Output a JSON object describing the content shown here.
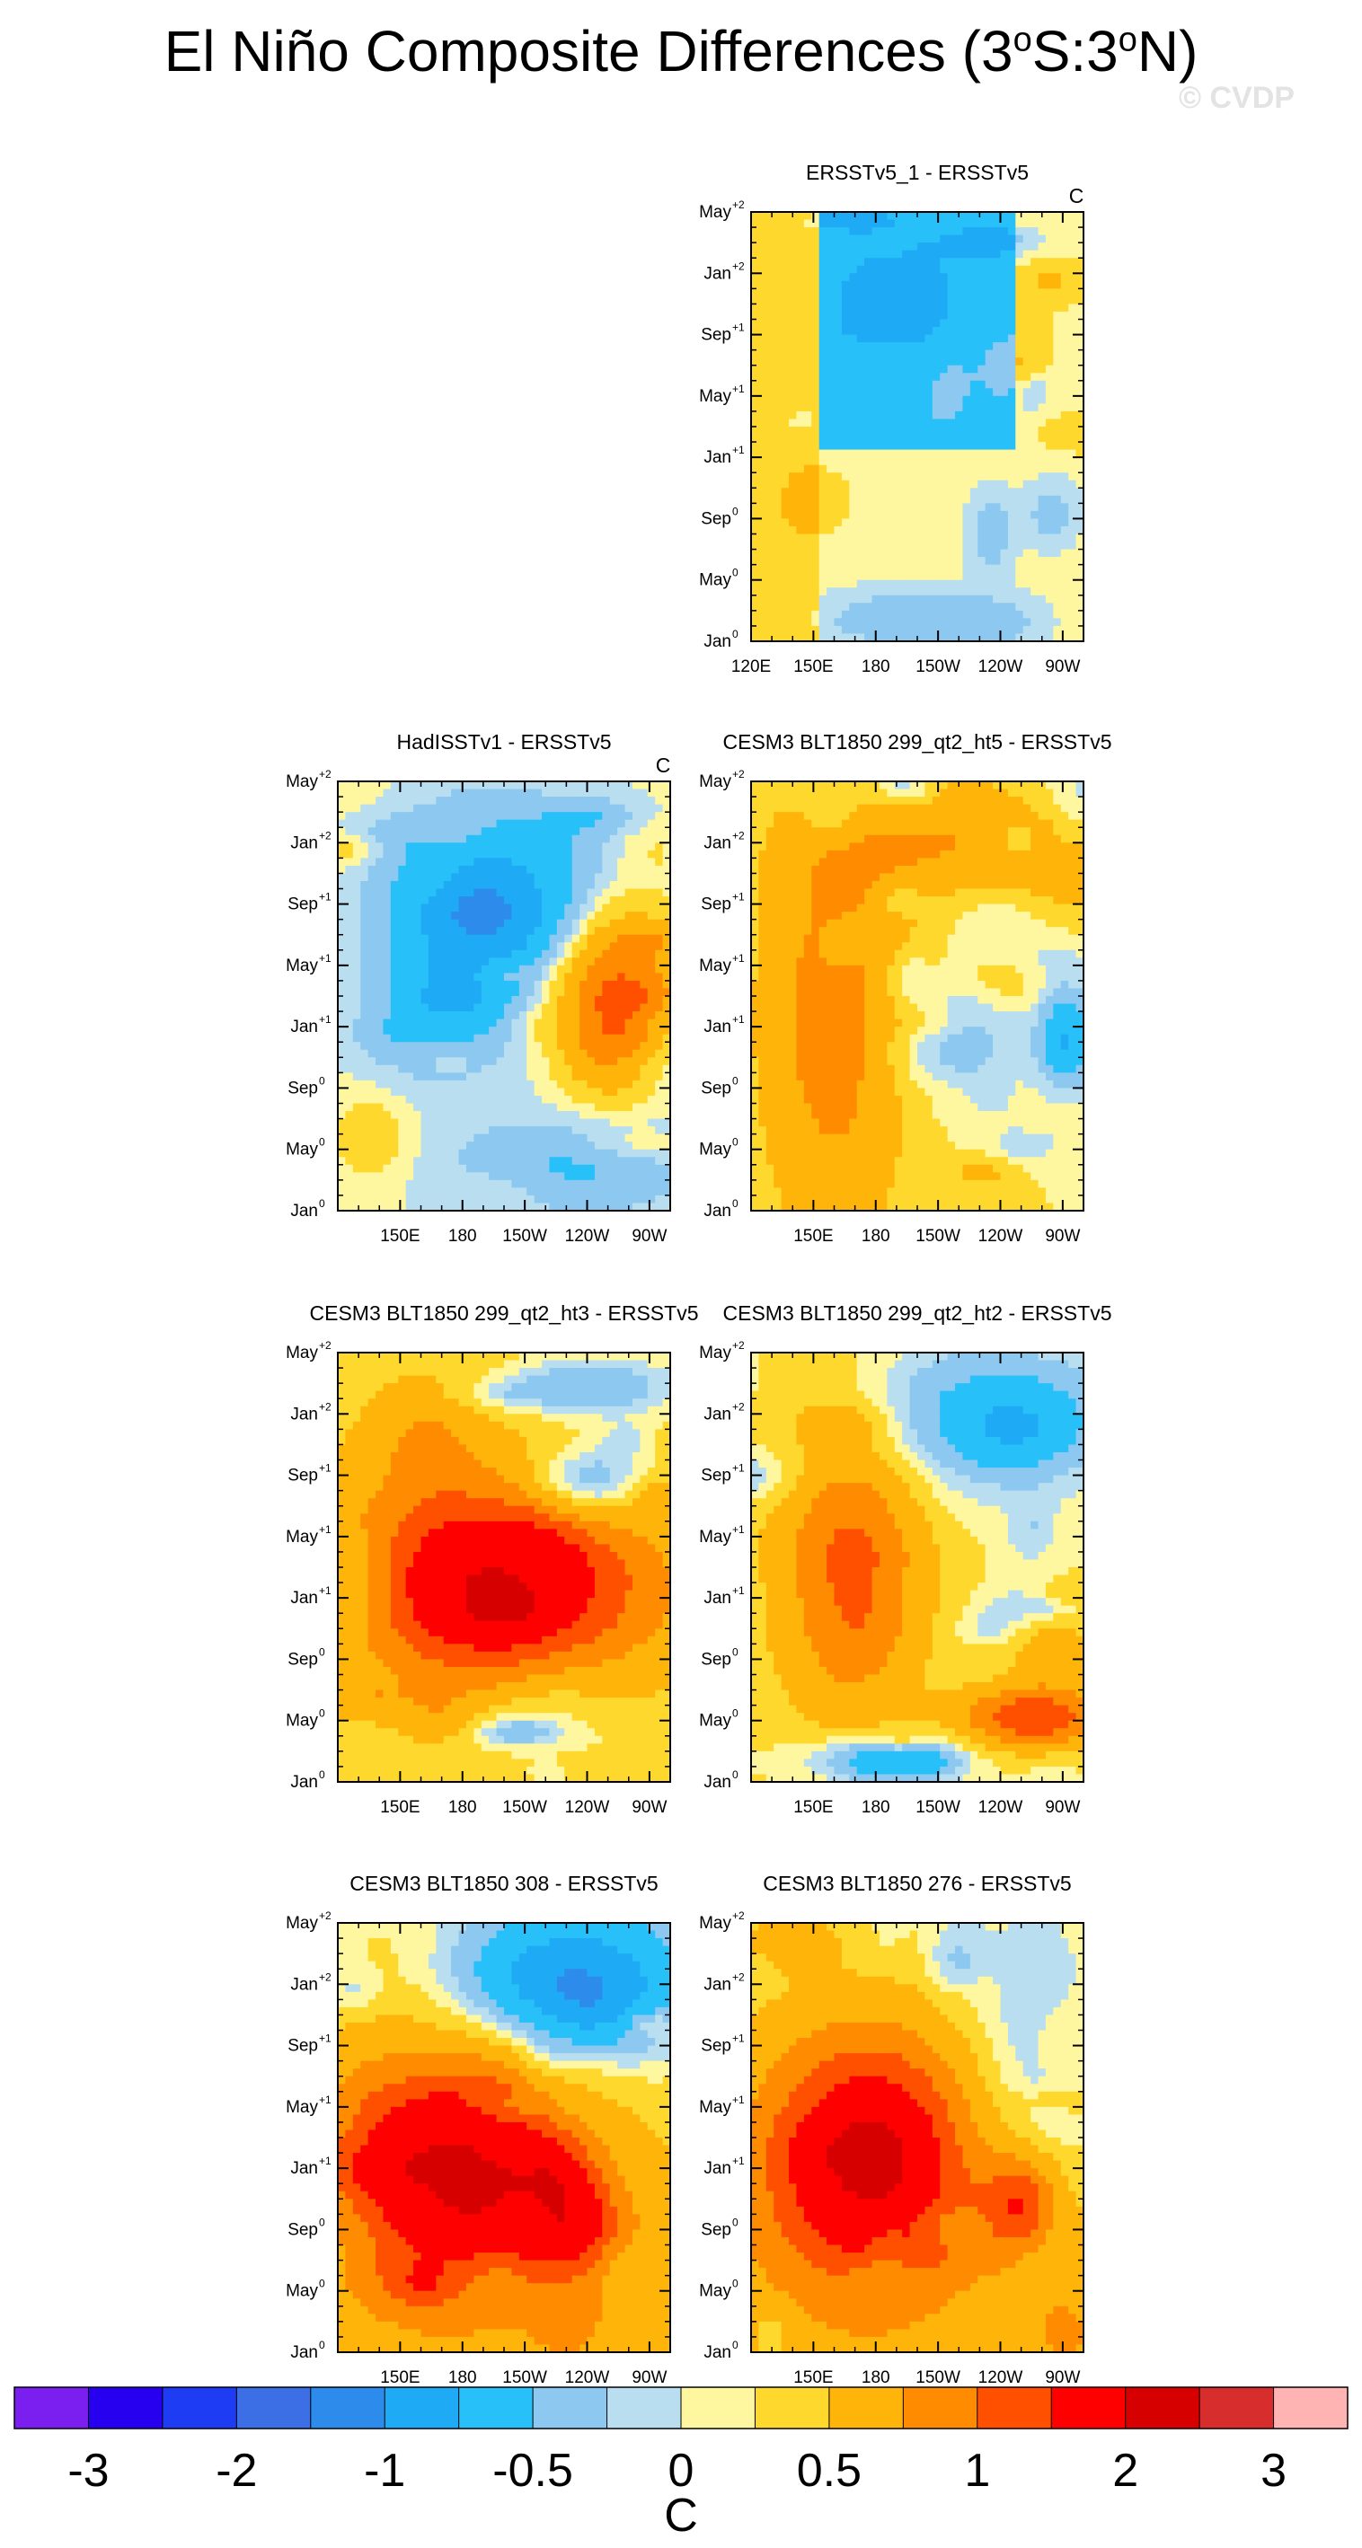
{
  "title": {
    "prefix": "El Niño Composite Differences (3",
    "deg1": "o",
    "mid": "S:3",
    "deg2": "o",
    "suffix": "N)"
  },
  "watermark": "© CVDP",
  "colorbar": {
    "colors": [
      "#7a1ff0",
      "#2800f0",
      "#1f3cf5",
      "#3c6ee6",
      "#2d8ceb",
      "#1eaaf5",
      "#28c0f8",
      "#8cc8f0",
      "#b8def0",
      "#fff7a0",
      "#ffd82e",
      "#ffb40a",
      "#ff8c00",
      "#ff5000",
      "#ff0000",
      "#d70000",
      "#d72d2d",
      "#ffb4b4"
    ],
    "labels": [
      "-3",
      "-2",
      "-1",
      "-0.5",
      "0",
      "0.5",
      "1",
      "2",
      "3"
    ],
    "unit": "C"
  },
  "chart_data": [
    {
      "type": "heatmap",
      "title": "ERSSTv5_1 - ERSSTv5",
      "unit_label": "C",
      "x_ticks": [
        "120E",
        "150E",
        "180",
        "150W",
        "120W",
        "90W"
      ],
      "y_ticks": [
        "Jan",
        "May",
        "Sep",
        "Jan",
        "May",
        "Sep",
        "Jan",
        "May"
      ],
      "y_sup": [
        "0",
        "0",
        "0",
        "+1",
        "+1",
        "+1",
        "+2",
        "+2"
      ],
      "xlim": [
        "120E",
        "80W"
      ],
      "ylim": [
        "Jan0",
        "May+2"
      ],
      "seed": 11,
      "preset": "ersst1"
    },
    {
      "type": "heatmap",
      "title": "HadISSTv1 - ERSSTv5",
      "unit_label": "C",
      "x_ticks": [
        "150E",
        "180",
        "150W",
        "120W",
        "90W"
      ],
      "y_ticks": [
        "Jan",
        "May",
        "Sep",
        "Jan",
        "May",
        "Sep",
        "Jan",
        "May"
      ],
      "y_sup": [
        "0",
        "0",
        "0",
        "+1",
        "+1",
        "+1",
        "+2",
        "+2"
      ],
      "xlim": [
        "120E",
        "80W"
      ],
      "ylim": [
        "Jan0",
        "May+2"
      ],
      "seed": 23,
      "preset": "hadisst"
    },
    {
      "type": "heatmap",
      "title": "CESM3 BLT1850 299_qt2_ht5 - ERSSTv5",
      "unit_label": "",
      "x_ticks": [
        "150E",
        "180",
        "150W",
        "120W",
        "90W"
      ],
      "y_ticks": [
        "Jan",
        "May",
        "Sep",
        "Jan",
        "May",
        "Sep",
        "Jan",
        "May"
      ],
      "y_sup": [
        "0",
        "0",
        "0",
        "+1",
        "+1",
        "+1",
        "+2",
        "+2"
      ],
      "xlim": [
        "120E",
        "80W"
      ],
      "ylim": [
        "Jan0",
        "May+2"
      ],
      "seed": 37,
      "preset": "ht5"
    },
    {
      "type": "heatmap",
      "title": "CESM3 BLT1850 299_qt2_ht3 - ERSSTv5",
      "unit_label": "",
      "x_ticks": [
        "150E",
        "180",
        "150W",
        "120W",
        "90W"
      ],
      "y_ticks": [
        "Jan",
        "May",
        "Sep",
        "Jan",
        "May",
        "Sep",
        "Jan",
        "May"
      ],
      "y_sup": [
        "0",
        "0",
        "0",
        "+1",
        "+1",
        "+1",
        "+2",
        "+2"
      ],
      "xlim": [
        "120E",
        "80W"
      ],
      "ylim": [
        "Jan0",
        "May+2"
      ],
      "seed": 41,
      "preset": "ht3"
    },
    {
      "type": "heatmap",
      "title": "CESM3 BLT1850 299_qt2_ht2 - ERSSTv5",
      "unit_label": "",
      "x_ticks": [
        "150E",
        "180",
        "150W",
        "120W",
        "90W"
      ],
      "y_ticks": [
        "Jan",
        "May",
        "Sep",
        "Jan",
        "May",
        "Sep",
        "Jan",
        "May"
      ],
      "y_sup": [
        "0",
        "0",
        "0",
        "+1",
        "+1",
        "+1",
        "+2",
        "+2"
      ],
      "xlim": [
        "120E",
        "80W"
      ],
      "ylim": [
        "Jan0",
        "May+2"
      ],
      "seed": 53,
      "preset": "ht2"
    },
    {
      "type": "heatmap",
      "title": "CESM3 BLT1850 308 - ERSSTv5",
      "unit_label": "",
      "x_ticks": [
        "150E",
        "180",
        "150W",
        "120W",
        "90W"
      ],
      "y_ticks": [
        "Jan",
        "May",
        "Sep",
        "Jan",
        "May",
        "Sep",
        "Jan",
        "May"
      ],
      "y_sup": [
        "0",
        "0",
        "0",
        "+1",
        "+1",
        "+1",
        "+2",
        "+2"
      ],
      "xlim": [
        "120E",
        "80W"
      ],
      "ylim": [
        "Jan0",
        "May+2"
      ],
      "seed": 61,
      "preset": "m308"
    },
    {
      "type": "heatmap",
      "title": "CESM3 BLT1850 276 - ERSSTv5",
      "unit_label": "",
      "x_ticks": [
        "150E",
        "180",
        "150W",
        "120W",
        "90W"
      ],
      "y_ticks": [
        "Jan",
        "May",
        "Sep",
        "Jan",
        "May",
        "Sep",
        "Jan",
        "May"
      ],
      "y_sup": [
        "0",
        "0",
        "0",
        "+1",
        "+1",
        "+1",
        "+2",
        "+2"
      ],
      "xlim": [
        "120E",
        "80W"
      ],
      "ylim": [
        "Jan0",
        "May+2"
      ],
      "seed": 71,
      "preset": "m276"
    }
  ]
}
